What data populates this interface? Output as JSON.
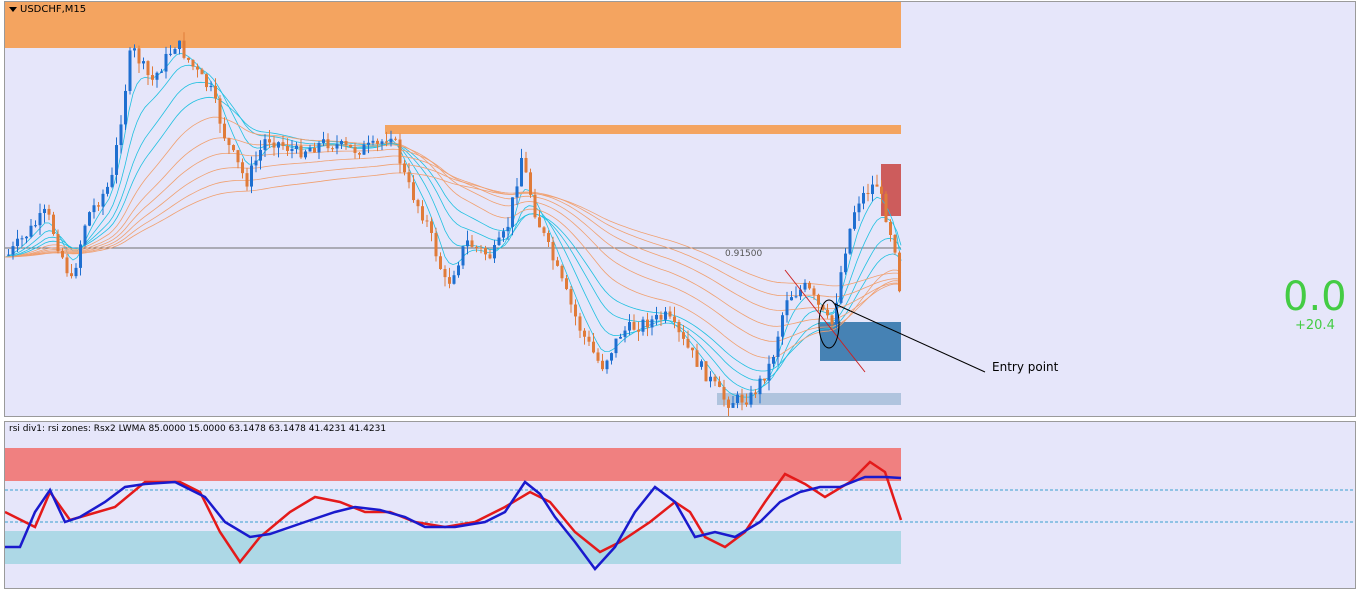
{
  "chart": {
    "symbol": "USDCHF,M15",
    "price_level_label": "0.91500",
    "annotation_text": "Entry point",
    "big_value": "0.0",
    "sub_value": "+20.4"
  },
  "indicator": {
    "label": "rsi div1: rsi zones: Rsx2 LWMA 85.0000 15.0000 63.1478 63.1478 41.4231 41.4231"
  },
  "colors": {
    "background": "#e6e6fa",
    "bull_candle": "#1e6fd0",
    "bear_candle": "#e07b39",
    "zone_orange": "#f4a460",
    "zone_red": "#cd5c5c",
    "zone_blue": "#4682b4",
    "zone_lightblue": "#b0c4de",
    "ma_orange": "#f0a070",
    "ma_cyan": "#20c0e0",
    "rsi_red": "#e41a1a",
    "rsi_blue": "#1a1acd",
    "rsi_zone_red": "#f08080",
    "rsi_zone_blue": "#add8e6",
    "value_green": "#44cc44"
  }
}
